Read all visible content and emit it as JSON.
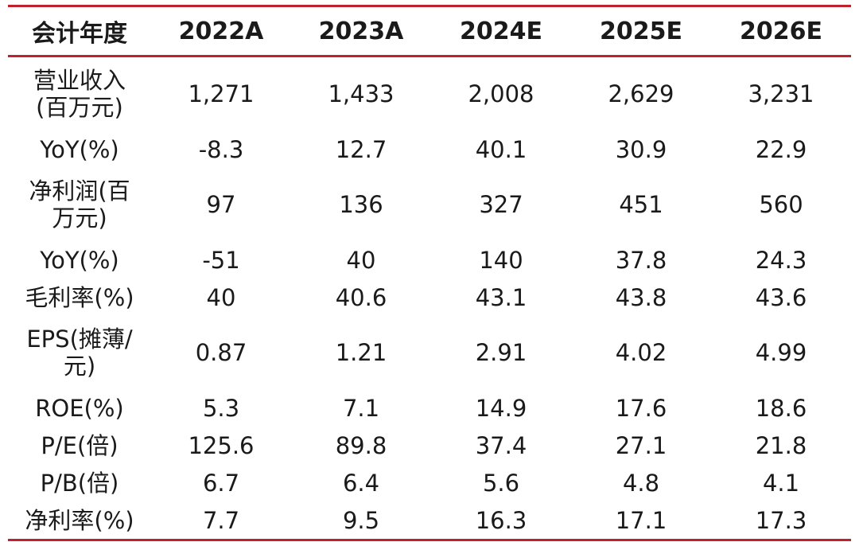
{
  "table": {
    "headers": [
      "会计年度",
      "2022A",
      "2023A",
      "2024E",
      "2025E",
      "2026E"
    ],
    "rows": [
      {
        "label_lines": [
          "营业收入",
          "(百万元)"
        ],
        "values": [
          "1,271",
          "1,433",
          "2,008",
          "2,629",
          "3,231"
        ]
      },
      {
        "label_lines": [
          "YoY(%)"
        ],
        "values": [
          "-8.3",
          "12.7",
          "40.1",
          "30.9",
          "22.9"
        ]
      },
      {
        "label_lines": [
          "净利润(百",
          "万元)"
        ],
        "values": [
          "97",
          "136",
          "327",
          "451",
          "560"
        ]
      },
      {
        "label_lines": [
          "YoY(%)"
        ],
        "values": [
          "-51",
          "40",
          "140",
          "37.8",
          "24.3"
        ]
      },
      {
        "label_lines": [
          "毛利率(%)"
        ],
        "values": [
          "40",
          "40.6",
          "43.1",
          "43.8",
          "43.6"
        ]
      },
      {
        "label_lines": [
          "EPS(摊薄/",
          "元)"
        ],
        "values": [
          "0.87",
          "1.21",
          "2.91",
          "4.02",
          "4.99"
        ]
      },
      {
        "label_lines": [
          "ROE(%)"
        ],
        "values": [
          "5.3",
          "7.1",
          "14.9",
          "17.6",
          "18.6"
        ]
      },
      {
        "label_lines": [
          "P/E(倍)"
        ],
        "values": [
          "125.6",
          "89.8",
          "37.4",
          "27.1",
          "21.8"
        ]
      },
      {
        "label_lines": [
          "P/B(倍)"
        ],
        "values": [
          "6.7",
          "6.4",
          "5.6",
          "4.8",
          "4.1"
        ]
      },
      {
        "label_lines": [
          "净利率(%)"
        ],
        "values": [
          "7.7",
          "9.5",
          "16.3",
          "17.1",
          "17.3"
        ]
      }
    ]
  },
  "colors": {
    "rule": "#c0212e",
    "text": "#1a1a1a"
  }
}
